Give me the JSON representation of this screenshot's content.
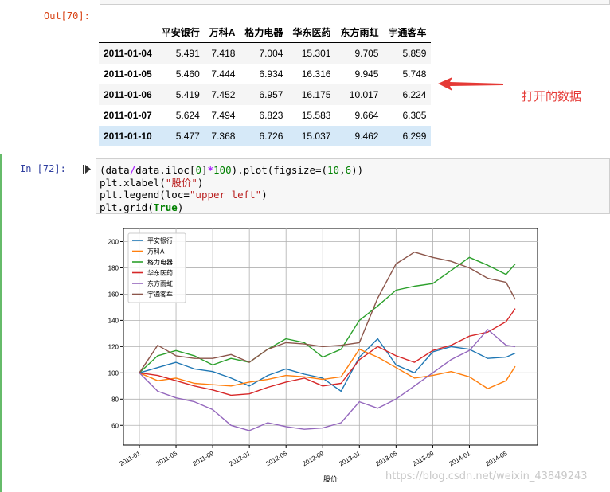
{
  "output_prompt": "Out[70]:",
  "dataframe": {
    "columns": [
      "平安银行",
      "万科A",
      "格力电器",
      "华东医药",
      "东方雨虹",
      "宇通客车"
    ],
    "rows": [
      {
        "index": "2011-01-04",
        "values": [
          "5.491",
          "7.418",
          "7.004",
          "15.301",
          "9.705",
          "5.859"
        ]
      },
      {
        "index": "2011-01-05",
        "values": [
          "5.460",
          "7.444",
          "6.934",
          "16.316",
          "9.945",
          "5.748"
        ]
      },
      {
        "index": "2011-01-06",
        "values": [
          "5.419",
          "7.452",
          "6.957",
          "16.175",
          "10.017",
          "6.224"
        ]
      },
      {
        "index": "2011-01-07",
        "values": [
          "5.624",
          "7.494",
          "6.823",
          "15.583",
          "9.664",
          "6.305"
        ]
      },
      {
        "index": "2011-01-10",
        "values": [
          "5.477",
          "7.368",
          "6.726",
          "15.037",
          "9.462",
          "6.299"
        ]
      }
    ]
  },
  "annotation": {
    "text": "打开的数据",
    "color": "#e53935"
  },
  "input_prompt": "In  [72]:",
  "code": {
    "line1_a": "(data",
    "line1_op1": "/",
    "line1_b": "data.iloc[",
    "line1_n1": "0",
    "line1_c": "]",
    "line1_op2": "*",
    "line1_n2": "100",
    "line1_d": ").plot(figsize=(",
    "line1_n3": "10",
    "line1_e": ",",
    "line1_n4": "6",
    "line1_f": "))",
    "line2_a": "plt.xlabel(",
    "line2_s": "\"股价\"",
    "line2_b": ")",
    "line3_a": "plt.legend(loc=",
    "line3_s": "\"upper left\"",
    "line3_b": ")",
    "line4_a": "plt.grid(",
    "line4_kw": "True",
    "line4_b": ")"
  },
  "chart_data": {
    "type": "line",
    "xlabel": "股价",
    "ylabel": "",
    "ylim": [
      45,
      210
    ],
    "yticks": [
      60,
      80,
      100,
      120,
      140,
      160,
      180,
      200
    ],
    "xticks": [
      "2011-01",
      "2011-05",
      "2011-09",
      "2012-01",
      "2012-05",
      "2012-09",
      "2013-01",
      "2013-05",
      "2013-09",
      "2014-01",
      "2014-05"
    ],
    "x_months": [
      "2011-01",
      "2011-03",
      "2011-05",
      "2011-07",
      "2011-09",
      "2011-11",
      "2012-01",
      "2012-03",
      "2012-05",
      "2012-07",
      "2012-09",
      "2012-11",
      "2013-01",
      "2013-03",
      "2013-05",
      "2013-07",
      "2013-09",
      "2013-11",
      "2014-01",
      "2014-03",
      "2014-05",
      "2014-06"
    ],
    "grid": true,
    "legend_loc": "top-left",
    "series": [
      {
        "name": "平安银行",
        "color": "#1f77b4",
        "values": [
          100,
          104,
          108,
          103,
          101,
          96,
          90,
          98,
          103,
          99,
          96,
          86,
          112,
          126,
          106,
          100,
          116,
          120,
          118,
          111,
          112,
          115
        ]
      },
      {
        "name": "万科A",
        "color": "#ff7f0e",
        "values": [
          100,
          94,
          96,
          92,
          91,
          90,
          93,
          95,
          98,
          97,
          95,
          97,
          118,
          112,
          104,
          96,
          98,
          101,
          97,
          88,
          94,
          105
        ]
      },
      {
        "name": "格力电器",
        "color": "#2ca02c",
        "values": [
          100,
          113,
          117,
          113,
          106,
          111,
          108,
          118,
          126,
          123,
          112,
          118,
          140,
          151,
          163,
          166,
          168,
          178,
          188,
          182,
          175,
          183
        ]
      },
      {
        "name": "华东医药",
        "color": "#d62728",
        "values": [
          100,
          98,
          94,
          90,
          87,
          83,
          84,
          89,
          93,
          96,
          90,
          92,
          110,
          120,
          113,
          108,
          117,
          121,
          128,
          131,
          139,
          149
        ]
      },
      {
        "name": "东方雨虹",
        "color": "#9467bd",
        "values": [
          100,
          86,
          81,
          78,
          72,
          60,
          56,
          62,
          59,
          57,
          58,
          62,
          78,
          73,
          80,
          90,
          100,
          110,
          117,
          133,
          121,
          120
        ]
      },
      {
        "name": "宇通客车",
        "color": "#8c564b",
        "values": [
          100,
          121,
          113,
          111,
          111,
          114,
          108,
          118,
          123,
          122,
          120,
          121,
          123,
          157,
          183,
          192,
          188,
          185,
          180,
          172,
          169,
          156
        ]
      }
    ]
  }
}
